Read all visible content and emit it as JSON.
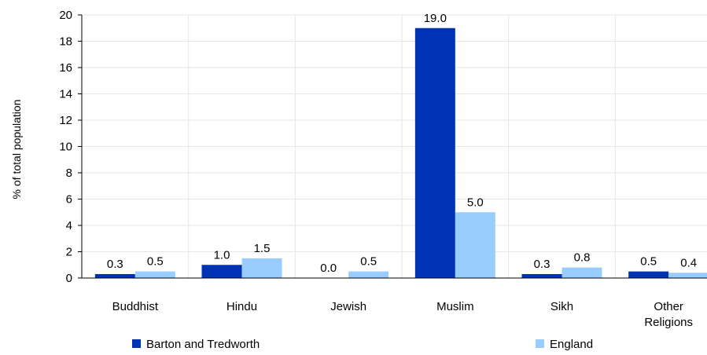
{
  "chart_data": {
    "type": "bar",
    "categories": [
      [
        "Buddhist"
      ],
      [
        "Hindu"
      ],
      [
        "Jewish"
      ],
      [
        "Muslim"
      ],
      [
        "Sikh"
      ],
      [
        "Other",
        "Religions"
      ]
    ],
    "series": [
      {
        "name": "Barton and Tredworth",
        "color": "#0033b3",
        "values": [
          0.3,
          1.0,
          0.0,
          19.0,
          0.3,
          0.5
        ],
        "labels": [
          "0.3",
          "1.0",
          "0.0",
          "19.0",
          "0.3",
          "0.5"
        ]
      },
      {
        "name": "England",
        "color": "#99ccff",
        "values": [
          0.5,
          1.5,
          0.5,
          5.0,
          0.8,
          0.4
        ],
        "labels": [
          "0.5",
          "1.5",
          "0.5",
          "5.0",
          "0.8",
          "0.4"
        ]
      }
    ],
    "ylabel": "% of total population",
    "ylim": [
      0,
      20
    ],
    "yticks": [
      "0",
      "2",
      "4",
      "6",
      "8",
      "10",
      "12",
      "14",
      "16",
      "18",
      "20"
    ],
    "grid": true,
    "legend": "bottom"
  }
}
